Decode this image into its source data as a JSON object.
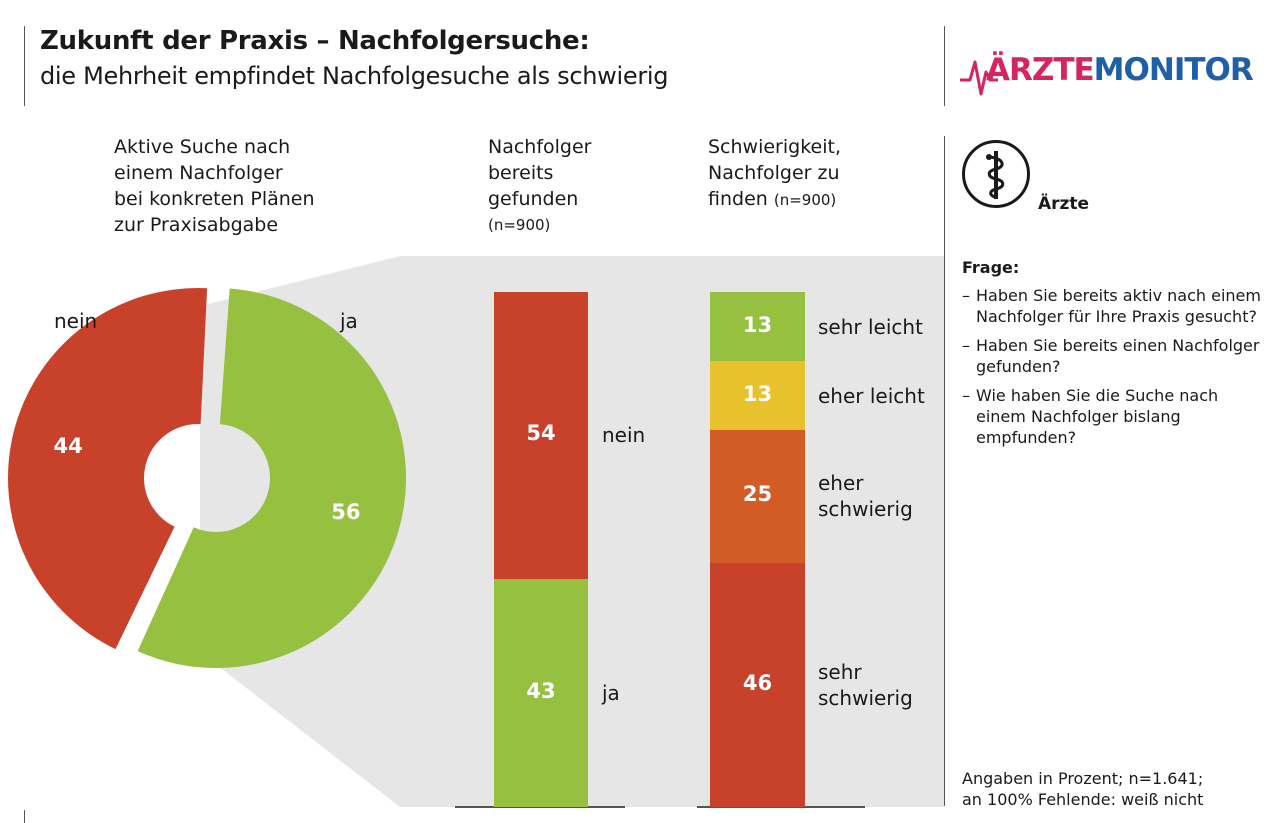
{
  "title": "Zukunft der Praxis – Nachfolgersuche:",
  "subtitle": "die Mehrheit empfindet Nachfolgesuche als schwierig",
  "logo": {
    "part1": "ÄRZTE",
    "part2": "MONITOR"
  },
  "audience": "Ärzte",
  "question_header": "Frage:",
  "questions": [
    "Haben Sie bereits aktiv nach einem Nachfolger für Ihre Praxis gesucht?",
    "Haben Sie bereits einen Nachfolger gefunden?",
    "Wie haben Sie die Suche nach einem Nachfolger bislang empfunden?"
  ],
  "footnote": {
    "line1": "Angaben in Prozent; n=1.641;",
    "line2": "an 100% Fehlende: weiß nicht"
  },
  "colors": {
    "red": "#c8412b",
    "green": "#95c040",
    "yellow": "#e7c22c",
    "orange": "#d35b26",
    "grey": "#e6e6e6"
  },
  "chart_data": [
    {
      "type": "pie",
      "title_lines": [
        "Aktive Suche nach",
        "einem Nachfolger",
        "bei konkreten Plänen",
        "zur Praxisabgabe"
      ],
      "slices": [
        {
          "label": "ja",
          "value": 56
        },
        {
          "label": "nein",
          "value": 44
        }
      ]
    },
    {
      "type": "bar",
      "stacked": true,
      "title_lines": [
        "Nachfolger",
        "bereits",
        "gefunden"
      ],
      "n_label": "(n=900)",
      "segments": [
        {
          "label": "nein",
          "value": 54
        },
        {
          "label": "ja",
          "value": 43
        }
      ]
    },
    {
      "type": "bar",
      "stacked": true,
      "title_lines": [
        "Schwierigkeit,",
        "Nachfolger zu",
        "finden"
      ],
      "n_label": "(n=900)",
      "segments": [
        {
          "label": "sehr leicht",
          "value": 13
        },
        {
          "label": "eher leicht",
          "value": 13
        },
        {
          "label": "eher schwierig",
          "value": 25
        },
        {
          "label": "sehr schwierig",
          "value": 46
        }
      ]
    }
  ]
}
